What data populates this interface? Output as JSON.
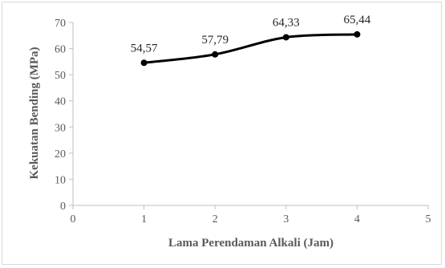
{
  "chart_data": {
    "type": "line",
    "xlabel": "Lama Perendaman Alkali (Jam)",
    "ylabel": "Kekuatan Bending (MPa)",
    "xlim": [
      0,
      5
    ],
    "ylim": [
      0,
      70
    ],
    "xticks": [
      "0",
      "1",
      "2",
      "3",
      "4",
      "5"
    ],
    "yticks": [
      "0",
      "10",
      "20",
      "30",
      "40",
      "50",
      "60",
      "70"
    ],
    "grid": false,
    "smoothed": true,
    "series": [
      {
        "x": [
          1,
          2,
          3,
          4
        ],
        "values": [
          54.57,
          57.79,
          64.33,
          65.44
        ],
        "labels": [
          "54,57",
          "57,79",
          "64,33",
          "65,44"
        ],
        "color": "#000000"
      }
    ]
  }
}
